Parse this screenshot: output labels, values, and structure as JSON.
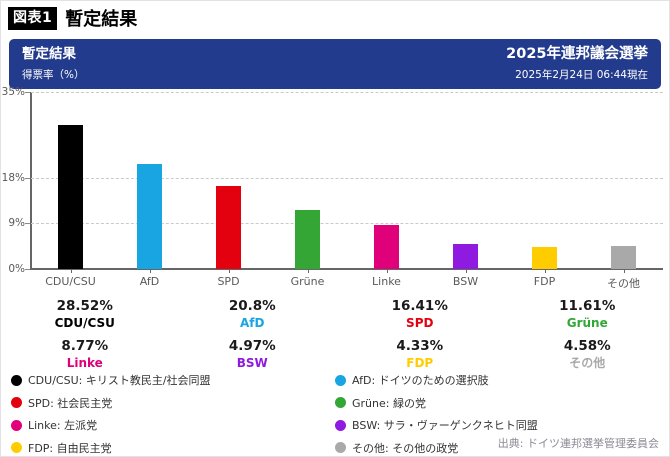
{
  "figure": {
    "tag": "図表1",
    "title": "暫定結果"
  },
  "header": {
    "title": "暫定結果",
    "subtitle": "得票率（%）",
    "election": "2025年連邦議会選挙",
    "timestamp": "2025年2月24日 06:44現在",
    "bg_color": "#233B8C"
  },
  "chart_data": {
    "type": "bar",
    "title": "暫定結果",
    "ylabel": "得票率（%）",
    "ylim": [
      0,
      35
    ],
    "yticks": [
      {
        "value": 35,
        "label": "35%"
      },
      {
        "value": 18,
        "label": "18%"
      },
      {
        "value": 9,
        "label": "9%"
      },
      {
        "value": 0,
        "label": "0%"
      }
    ],
    "grid": "horizontal-dashed",
    "legend_position": "bottom",
    "categories": [
      "CDU/CSU",
      "AfD",
      "SPD",
      "Grüne",
      "Linke",
      "BSW",
      "FDP",
      "その他"
    ],
    "values": [
      28.52,
      20.8,
      16.41,
      11.61,
      8.77,
      4.97,
      4.33,
      4.58
    ],
    "value_labels": [
      "28.52%",
      "20.8%",
      "16.41%",
      "11.61%",
      "8.77%",
      "4.97%",
      "4.33%",
      "4.58%"
    ],
    "colors": [
      "#000000",
      "#19A5E1",
      "#E3000F",
      "#33A635",
      "#E0007A",
      "#8F1BE0",
      "#FFCC00",
      "#A9A9A9"
    ]
  },
  "stats": [
    {
      "value": "28.52%",
      "party": "CDU/CSU",
      "color": "#000000"
    },
    {
      "value": "20.8%",
      "party": "AfD",
      "color": "#19A5E1"
    },
    {
      "value": "16.41%",
      "party": "SPD",
      "color": "#E3000F"
    },
    {
      "value": "11.61%",
      "party": "Grüne",
      "color": "#33A635"
    },
    {
      "value": "8.77%",
      "party": "Linke",
      "color": "#E0007A"
    },
    {
      "value": "4.97%",
      "party": "BSW",
      "color": "#8F1BE0"
    },
    {
      "value": "4.33%",
      "party": "FDP",
      "color": "#FFCC00"
    },
    {
      "value": "4.58%",
      "party": "その他",
      "color": "#A9A9A9"
    }
  ],
  "legend": [
    {
      "label": "CDU/CSU: キリスト教民主/社会同盟",
      "color": "#000000"
    },
    {
      "label": "SPD: 社会民主党",
      "color": "#E3000F"
    },
    {
      "label": "Linke: 左派党",
      "color": "#E0007A"
    },
    {
      "label": "FDP: 自由民主党",
      "color": "#FFCC00"
    },
    {
      "label": "AfD: ドイツのための選択肢",
      "color": "#19A5E1"
    },
    {
      "label": "Grüne: 緑の党",
      "color": "#33A635"
    },
    {
      "label": "BSW: サラ・ヴァーゲンクネヒト同盟",
      "color": "#8F1BE0"
    },
    {
      "label": "その他: その他の政党",
      "color": "#A9A9A9"
    }
  ],
  "source": "出典: ドイツ連邦選挙管理委員会"
}
